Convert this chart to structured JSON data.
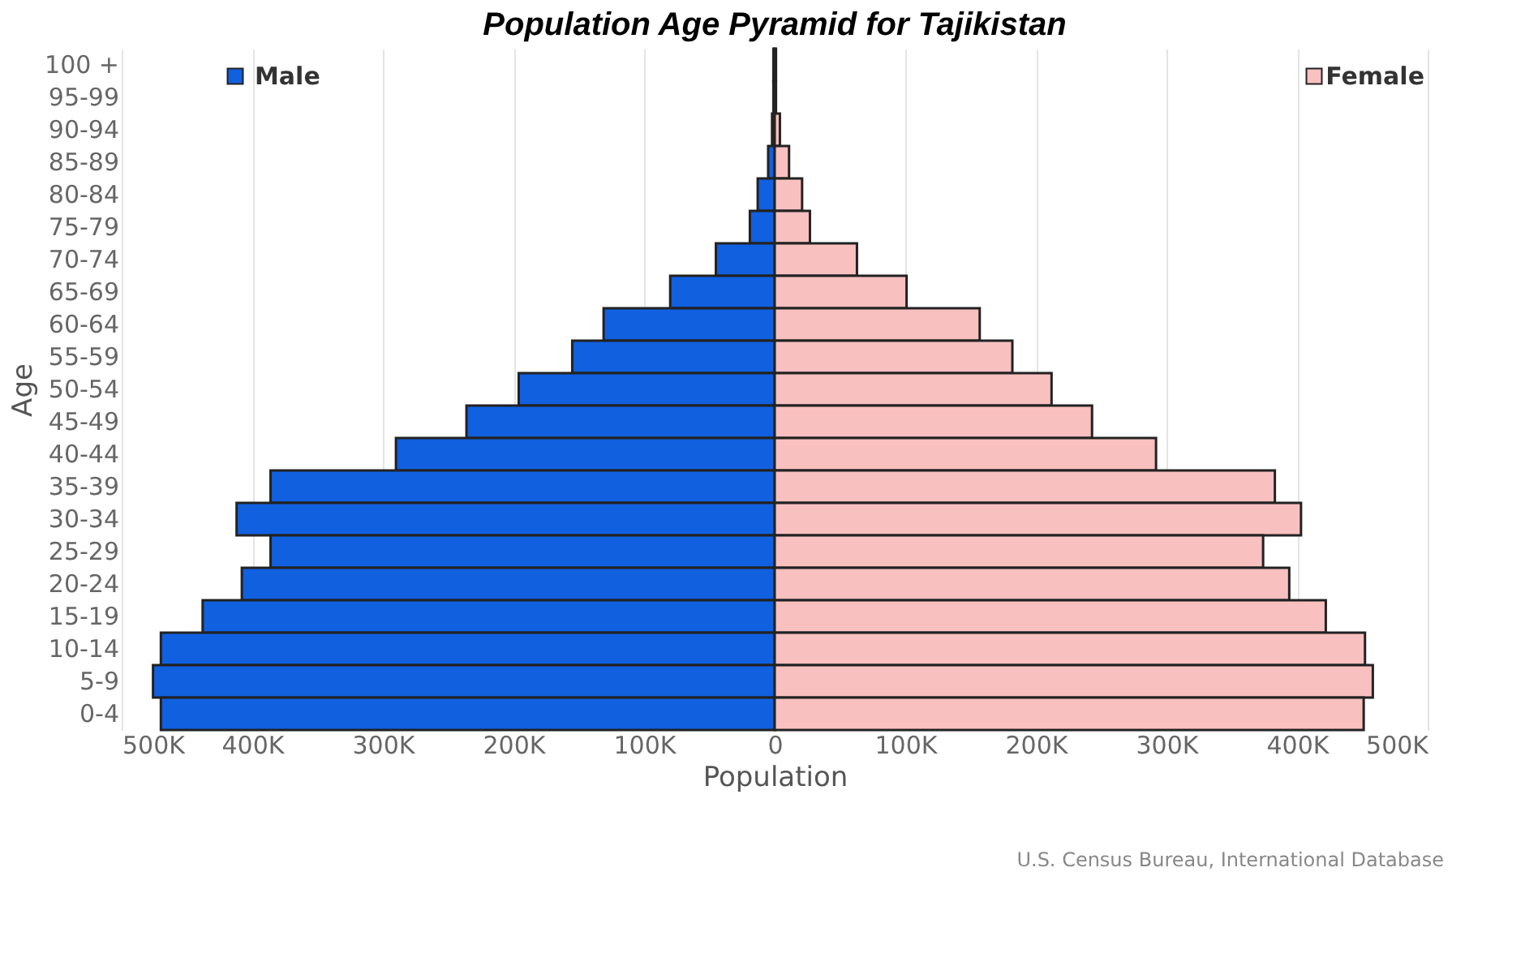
{
  "chart_data": {
    "type": "bar",
    "orientation": "horizontal",
    "title": "Population Age Pyramid for Tajikistan",
    "xlabel": "Population",
    "ylabel": "Age",
    "categories": [
      "100 +",
      "95-99",
      "90-94",
      "85-89",
      "80-84",
      "75-79",
      "70-74",
      "65-69",
      "60-64",
      "55-59",
      "50-54",
      "45-49",
      "40-44",
      "35-39",
      "30-34",
      "25-29",
      "20-24",
      "15-19",
      "10-14",
      "5-9",
      "0-4"
    ],
    "series": [
      {
        "name": "Male",
        "color": "#1060e0",
        "values": [
          -1000,
          -1000,
          -2000,
          -5000,
          -13000,
          -19000,
          -45000,
          -80000,
          -131000,
          -155000,
          -196000,
          -236000,
          -290000,
          -386000,
          -412000,
          -386000,
          -408000,
          -438000,
          -470000,
          -476000,
          -470000
        ]
      },
      {
        "name": "Female",
        "color": "#f9c0c0",
        "values": [
          1000,
          1000,
          4000,
          11000,
          21000,
          27000,
          63000,
          101000,
          157000,
          182000,
          212000,
          243000,
          292000,
          383000,
          403000,
          374000,
          394000,
          422000,
          452000,
          458000,
          451000
        ]
      }
    ],
    "xlim": [
      -500000,
      500000
    ],
    "xticks": [
      {
        "value": -500000,
        "label": "500K"
      },
      {
        "value": -400000,
        "label": "400K"
      },
      {
        "value": -300000,
        "label": "300K"
      },
      {
        "value": -200000,
        "label": "200K"
      },
      {
        "value": -100000,
        "label": "100K"
      },
      0,
      {
        "value": 100000,
        "label": "100K"
      },
      {
        "value": 200000,
        "label": "200K"
      },
      {
        "value": 300000,
        "label": "300K"
      },
      {
        "value": 400000,
        "label": "400K"
      },
      {
        "value": 500000,
        "label": "500K"
      }
    ],
    "grid": "x",
    "legend": "top",
    "stacked": true,
    "annotations": [
      "U.S. Census Bureau, International Database"
    ]
  }
}
